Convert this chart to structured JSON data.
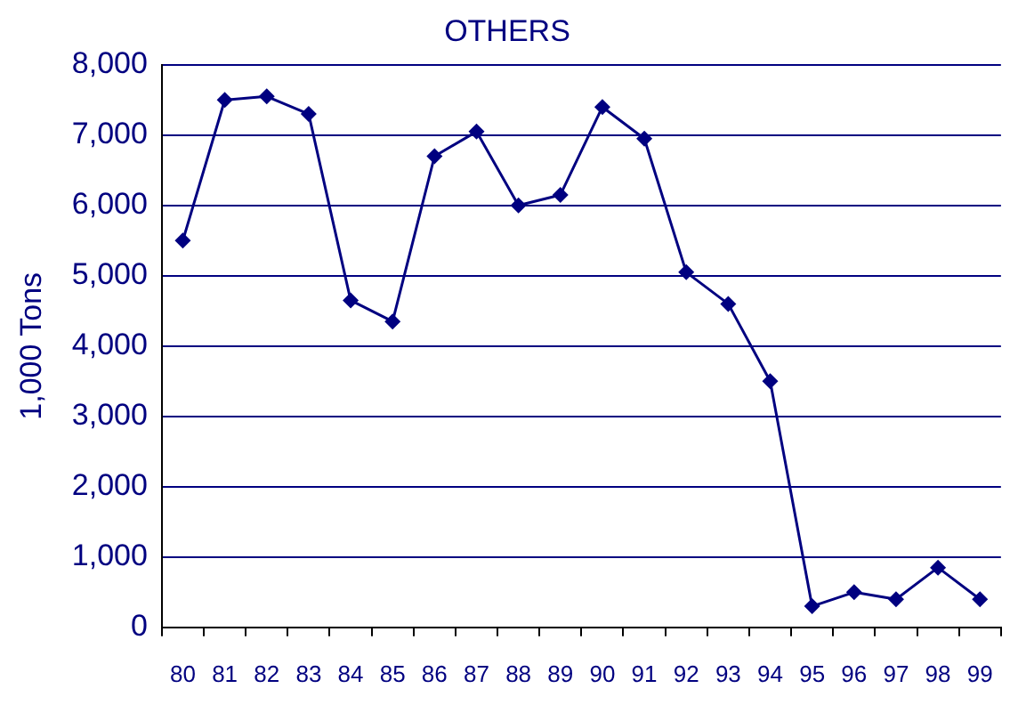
{
  "chart_data": {
    "type": "line",
    "title": "OTHERS",
    "ylabel": "1,000 Tons",
    "categories": [
      "80",
      "81",
      "82",
      "83",
      "84",
      "85",
      "86",
      "87",
      "88",
      "89",
      "90",
      "91",
      "92",
      "93",
      "94",
      "95",
      "96",
      "97",
      "98",
      "99"
    ],
    "series": [
      {
        "color": "#000080",
        "values": [
          5500,
          7500,
          7550,
          7300,
          4650,
          4350,
          6700,
          7050,
          6000,
          6150,
          7400,
          6950,
          5050,
          4600,
          3500,
          300,
          500,
          400,
          850,
          400
        ]
      }
    ],
    "ylim": [
      0,
      8000
    ],
    "yticks": [
      0,
      {
        "value": 1000,
        "label": "1,000"
      },
      {
        "value": 2000,
        "label": "2,000"
      },
      {
        "value": 3000,
        "label": "3,000"
      },
      {
        "value": 4000,
        "label": "4,000"
      },
      {
        "value": 5000,
        "label": "5,000"
      },
      {
        "value": 6000,
        "label": "6,000"
      },
      {
        "value": 7000,
        "label": "7,000"
      },
      {
        "value": 8000,
        "label": "8,000"
      }
    ],
    "grid": "y",
    "legend": false,
    "marker": "diamond",
    "line_style": "solid"
  }
}
